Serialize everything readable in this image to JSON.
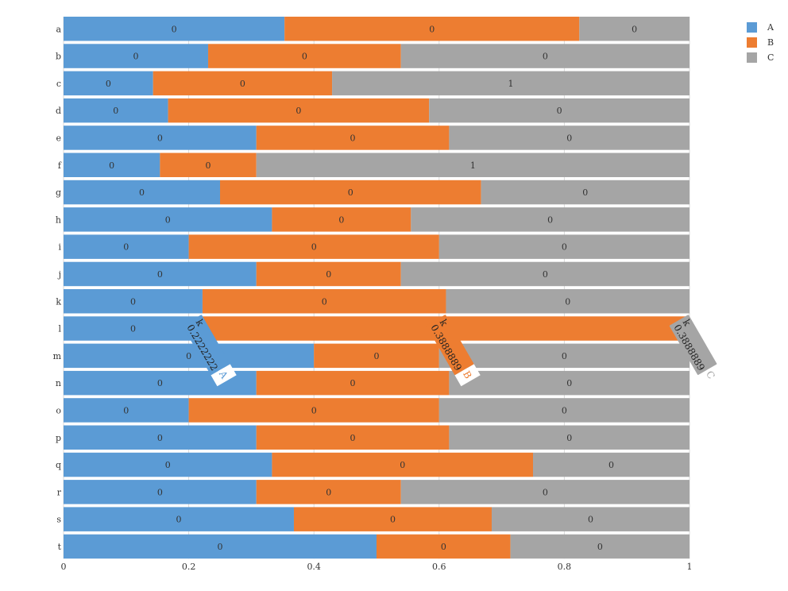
{
  "colors": {
    "A": "#5b9bd5",
    "B": "#ed7d31",
    "C": "#a5a5a5"
  },
  "chart_data": {
    "type": "bar",
    "orientation": "horizontal",
    "stacked": "percent",
    "categories": [
      "a",
      "b",
      "c",
      "d",
      "e",
      "f",
      "g",
      "h",
      "i",
      "j",
      "k",
      "l",
      "m",
      "n",
      "o",
      "p",
      "q",
      "r",
      "s",
      "t"
    ],
    "series": [
      {
        "name": "A",
        "values": [
          0.353,
          0.231,
          0.143,
          0.167,
          0.308,
          0.154,
          0.25,
          0.333,
          0.2,
          0.308,
          0.222,
          0.222,
          0.4,
          0.308,
          0.2,
          0.308,
          0.333,
          0.308,
          0.368,
          0.5
        ]
      },
      {
        "name": "B",
        "values": [
          0.471,
          0.308,
          0.286,
          0.417,
          0.308,
          0.154,
          0.417,
          0.222,
          0.4,
          0.231,
          0.389,
          0.778,
          0.2,
          0.308,
          0.4,
          0.308,
          0.417,
          0.231,
          0.316,
          0.214
        ]
      },
      {
        "name": "C",
        "values": [
          0.176,
          0.461,
          0.571,
          0.416,
          0.384,
          0.692,
          0.333,
          0.445,
          0.4,
          0.461,
          0.389,
          0.0,
          0.4,
          0.384,
          0.4,
          0.384,
          0.25,
          0.461,
          0.316,
          0.286
        ]
      }
    ],
    "data_labels": [
      [
        "0",
        "0",
        "0"
      ],
      [
        "0",
        "0",
        "0"
      ],
      [
        "0",
        "0",
        "1"
      ],
      [
        "0",
        "0",
        "0"
      ],
      [
        "0",
        "0",
        "0"
      ],
      [
        "0",
        "0",
        "1"
      ],
      [
        "0",
        "0",
        "0"
      ],
      [
        "0",
        "0",
        "0"
      ],
      [
        "0",
        "0",
        "0"
      ],
      [
        "0",
        "0",
        "0"
      ],
      [
        "0",
        "0",
        "0"
      ],
      [
        "0",
        "",
        ""
      ],
      [
        "0",
        "0",
        "0"
      ],
      [
        "0",
        "0",
        "0"
      ],
      [
        "0",
        "0",
        "0"
      ],
      [
        "0",
        "0",
        "0"
      ],
      [
        "0",
        "0",
        "0"
      ],
      [
        "0",
        "0",
        "0"
      ],
      [
        "0",
        "0",
        "0"
      ],
      [
        "0",
        "0",
        "0"
      ]
    ],
    "x_ticks": [
      "0",
      "0.2",
      "0.4",
      "0.6",
      "0.8",
      "1"
    ],
    "xlim": [
      0,
      1
    ],
    "grid": true,
    "legend": {
      "position": "top-right",
      "entries": [
        "A",
        "B",
        "C"
      ]
    },
    "tooltips": [
      {
        "series": "A",
        "category": "k",
        "value": "0.2222222"
      },
      {
        "series": "B",
        "category": "k",
        "value": "0.3888889"
      },
      {
        "series": "C",
        "category": "k",
        "value": "0.3888889"
      }
    ]
  }
}
